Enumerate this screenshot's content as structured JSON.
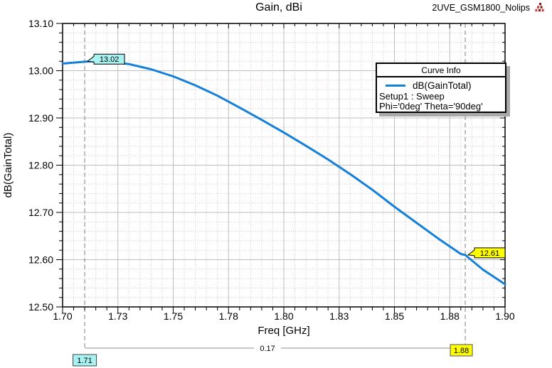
{
  "window": {
    "title": "Gain, dBi",
    "project_label": "2UVE_GSM1800_Nolips",
    "logo_icon": "ansys-red-triangle-logo"
  },
  "chart_data": {
    "type": "line",
    "title": "Gain, dBi",
    "xlabel": "Freq [GHz]",
    "ylabel": "dB(GainTotal)",
    "xlim": [
      1.7,
      1.9
    ],
    "ylim": [
      12.5,
      13.1
    ],
    "x_major_step": 0.025,
    "x_minor_step": 0.005,
    "y_major_step": 0.1,
    "y_minor_step": 0.02,
    "grid": true,
    "x_tick_labels": [
      "1.70",
      "1.73",
      "1.75",
      "1.78",
      "1.80",
      "1.83",
      "1.85",
      "1.88",
      "1.90"
    ],
    "y_tick_labels": [
      "13.10",
      "13.00",
      "12.90",
      "12.80",
      "12.70",
      "12.60",
      "12.50"
    ],
    "series": [
      {
        "name": "dB(GainTotal)",
        "color": "#1580d9",
        "x": [
          1.7,
          1.71,
          1.715,
          1.72,
          1.73,
          1.74,
          1.75,
          1.76,
          1.77,
          1.78,
          1.79,
          1.8,
          1.81,
          1.82,
          1.83,
          1.84,
          1.85,
          1.86,
          1.87,
          1.88,
          1.882,
          1.89,
          1.9
        ],
        "y": [
          13.015,
          13.019,
          13.02,
          13.02,
          13.014,
          13.003,
          12.988,
          12.969,
          12.947,
          12.922,
          12.896,
          12.869,
          12.841,
          12.812,
          12.781,
          12.748,
          12.712,
          12.678,
          12.644,
          12.612,
          12.61,
          12.579,
          12.548
        ]
      }
    ],
    "markers": [
      {
        "id": "m1",
        "x": 1.71,
        "y": 13.02,
        "value_label": "13.02",
        "x_label": "1.71",
        "fill": "#a8f2f2",
        "border": "#000000"
      },
      {
        "id": "m2",
        "x": 1.882,
        "y": 12.61,
        "value_label": "12.61",
        "x_label": "1.88",
        "fill": "#ffff00",
        "border": "#000000"
      }
    ],
    "delta_label": "0.17"
  },
  "legend": {
    "title": "Curve Info",
    "entries": [
      {
        "label": "dB(GainTotal)",
        "swatch_color": "#1580d9"
      }
    ],
    "lines": [
      "Setup1 : Sweep",
      "Phi='0deg' Theta='90deg'"
    ]
  },
  "colors": {
    "grid_major": "#bdbdbd",
    "grid_minor": "#d5c6d5",
    "axis": "#000000",
    "marker_dash_line": "#808080",
    "connector_line": "#909090",
    "curve": "#1580d9",
    "legend_shadow": "#aaaaaa",
    "logo_red_dark": "#8c1a1a",
    "logo_red_light": "#c24040"
  }
}
